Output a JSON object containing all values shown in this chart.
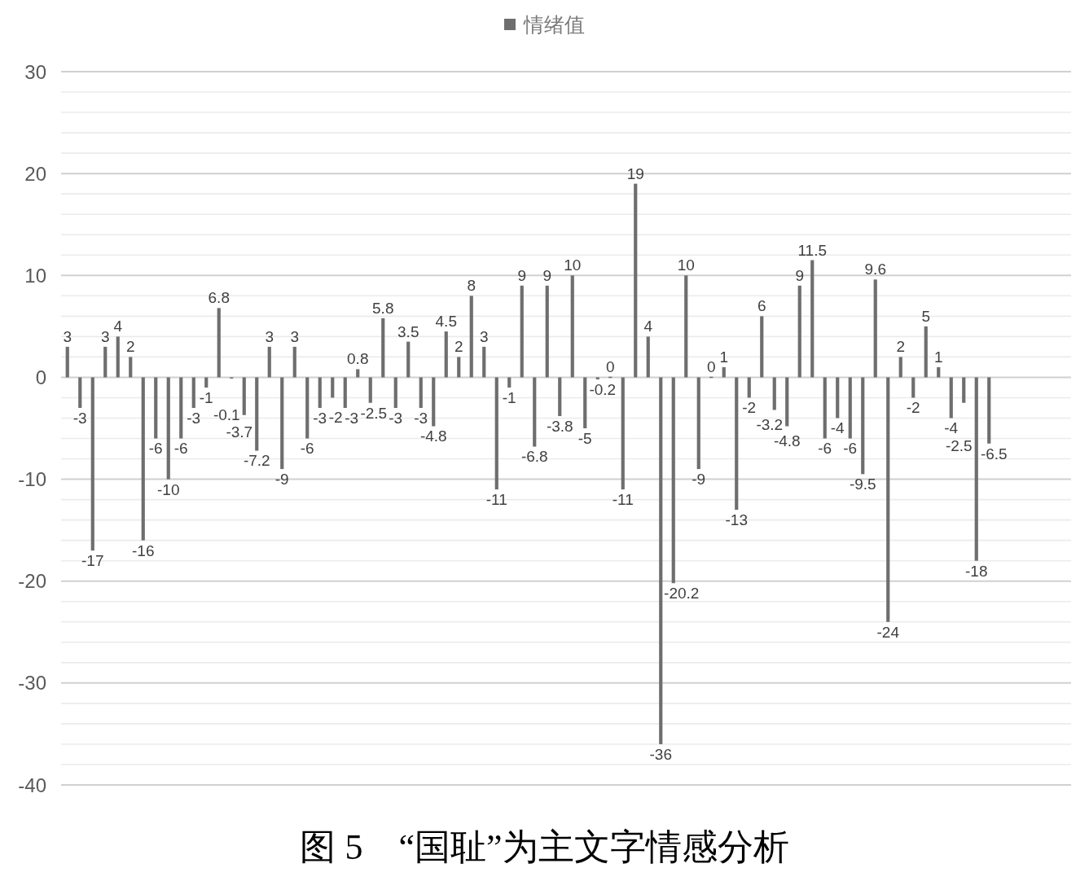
{
  "chart_data": {
    "type": "bar",
    "categories": [
      null,
      null,
      null,
      null,
      null,
      null,
      null,
      null,
      null,
      null,
      null,
      null,
      null,
      null,
      null,
      null,
      null,
      null,
      null,
      null,
      null,
      null,
      null,
      null,
      null,
      null,
      null,
      null,
      null,
      null,
      null,
      null,
      null,
      null,
      null,
      null,
      null,
      null,
      null,
      null,
      null,
      null,
      null,
      null,
      null,
      null,
      null,
      null,
      null,
      null,
      null,
      null,
      null,
      null,
      null,
      null,
      null,
      null,
      null,
      null,
      null,
      null,
      null,
      null,
      null,
      null,
      null,
      null,
      null,
      null,
      null,
      null,
      null,
      null,
      null,
      null,
      null,
      null,
      null,
      null
    ],
    "series": [
      {
        "name": "情绪值",
        "color": "#6e6e6e",
        "values": [
          3,
          -3,
          -17,
          3,
          4,
          2,
          -16,
          -6,
          -10,
          -6,
          -3,
          -1,
          6.8,
          -0.1,
          -3.7,
          -7.2,
          3,
          -9,
          3,
          -6,
          -3,
          -2,
          -3,
          0.8,
          -2.5,
          5.8,
          -3,
          3.5,
          -3,
          -4.8,
          4.5,
          2,
          8,
          3,
          -11,
          -1,
          9,
          -6.8,
          9,
          -3.8,
          10,
          -5,
          -0.2,
          0,
          -11,
          19,
          4,
          -36,
          -20.2,
          10,
          -9,
          0,
          1,
          -13,
          -2,
          6,
          -3.2,
          -4.8,
          9,
          11.5,
          -6,
          -4,
          -6,
          -9.5,
          9.6,
          -24,
          2,
          -2,
          5,
          1,
          -4,
          -2.5,
          -18,
          -6.5,
          null,
          null,
          null,
          null,
          null,
          null
        ]
      }
    ],
    "ylim": [
      -40,
      30
    ],
    "yticks": [
      -40,
      {
        "value": -38,
        "label": null
      },
      {
        "value": -36,
        "label": null
      },
      {
        "value": -34,
        "label": null
      },
      {
        "value": -32,
        "label": null
      },
      -30,
      {
        "value": -28,
        "label": null
      },
      {
        "value": -26,
        "label": null
      },
      {
        "value": -24,
        "label": null
      },
      {
        "value": -22,
        "label": null
      },
      -20,
      {
        "value": -18,
        "label": null
      },
      {
        "value": -16,
        "label": null
      },
      {
        "value": -14,
        "label": null
      },
      {
        "value": -12,
        "label": null
      },
      -10,
      {
        "value": -8,
        "label": null
      },
      {
        "value": -6,
        "label": null
      },
      {
        "value": -4,
        "label": null
      },
      {
        "value": -2,
        "label": null
      },
      0,
      {
        "value": 2,
        "label": null
      },
      {
        "value": 4,
        "label": null
      },
      {
        "value": 6,
        "label": null
      },
      {
        "value": 8,
        "label": null
      },
      10,
      {
        "value": 12,
        "label": null
      },
      {
        "value": 14,
        "label": null
      },
      {
        "value": 16,
        "label": null
      },
      {
        "value": 18,
        "label": null
      },
      20,
      {
        "value": 22,
        "label": null
      },
      {
        "value": 24,
        "label": null
      },
      {
        "value": 26,
        "label": null
      },
      {
        "value": 28,
        "label": null
      },
      30
    ],
    "grid": "y",
    "legend": "top",
    "data_labels": true,
    "annotations": [
      "图 5　“国耻”为主文字情感分析"
    ]
  }
}
